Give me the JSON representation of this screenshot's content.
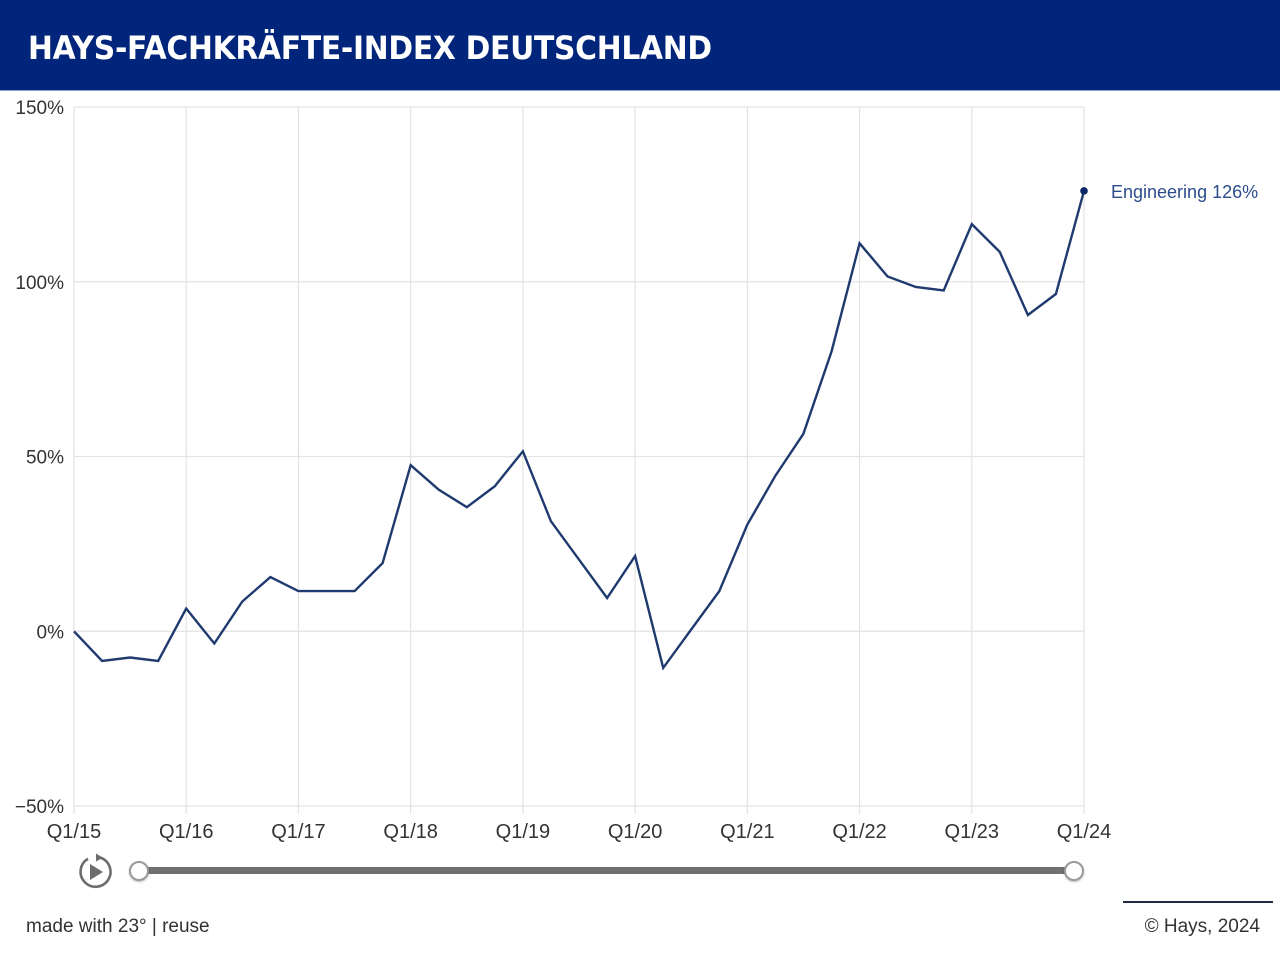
{
  "header": {
    "title": "HAYS-FACHKRÄFTE-INDEX DEUTSCHLAND"
  },
  "colors": {
    "header_bg": "#00257a",
    "line": "#1f3a6e",
    "label": "#2c4c8c",
    "grid": "#e3e3e3"
  },
  "chart_data": {
    "type": "line",
    "title": "HAYS-FACHKRÄFTE-INDEX DEUTSCHLAND",
    "xlabel": "",
    "ylabel": "",
    "ylim": [
      -50,
      150
    ],
    "yticks": [
      150,
      100,
      50,
      0,
      -50
    ],
    "ytick_labels": [
      "150%",
      "100%",
      "50%",
      "0%",
      "−50%"
    ],
    "xtick_labels": [
      "Q1/15",
      "Q1/16",
      "Q1/17",
      "Q1/18",
      "Q1/19",
      "Q1/20",
      "Q1/21",
      "Q1/22",
      "Q1/23",
      "Q1/24"
    ],
    "grid": true,
    "x": [
      "Q1/15",
      "Q2/15",
      "Q3/15",
      "Q4/15",
      "Q1/16",
      "Q2/16",
      "Q3/16",
      "Q4/16",
      "Q1/17",
      "Q2/17",
      "Q3/17",
      "Q4/17",
      "Q1/18",
      "Q2/18",
      "Q3/18",
      "Q4/18",
      "Q1/19",
      "Q2/19",
      "Q3/19",
      "Q4/19",
      "Q1/20",
      "Q2/20",
      "Q3/20",
      "Q4/20",
      "Q1/21",
      "Q2/21",
      "Q3/21",
      "Q4/21",
      "Q1/22",
      "Q2/22",
      "Q3/22",
      "Q4/22",
      "Q1/23",
      "Q2/23",
      "Q3/23",
      "Q4/23",
      "Q1/24"
    ],
    "series": [
      {
        "name": "Engineering",
        "values": [
          0,
          -8.5,
          -7.5,
          -8.5,
          6.5,
          -3.5,
          8.5,
          15.5,
          11.5,
          11.5,
          11.5,
          19.5,
          47.5,
          40.5,
          35.5,
          41.5,
          51.5,
          31.5,
          20.5,
          9.5,
          21.5,
          -10.5,
          0.5,
          11.5,
          30.5,
          44.5,
          56.5,
          80,
          111,
          101.5,
          98.5,
          97.5,
          116.5,
          108.5,
          90.5,
          96.5,
          126
        ]
      }
    ],
    "end_label": "Engineering 126%"
  },
  "controls": {
    "play_icon": "replay-play-icon",
    "slider_start": 0,
    "slider_end": 1
  },
  "footer": {
    "made_with": "made with 23° | reuse",
    "copyright": "© Hays, 2024"
  }
}
